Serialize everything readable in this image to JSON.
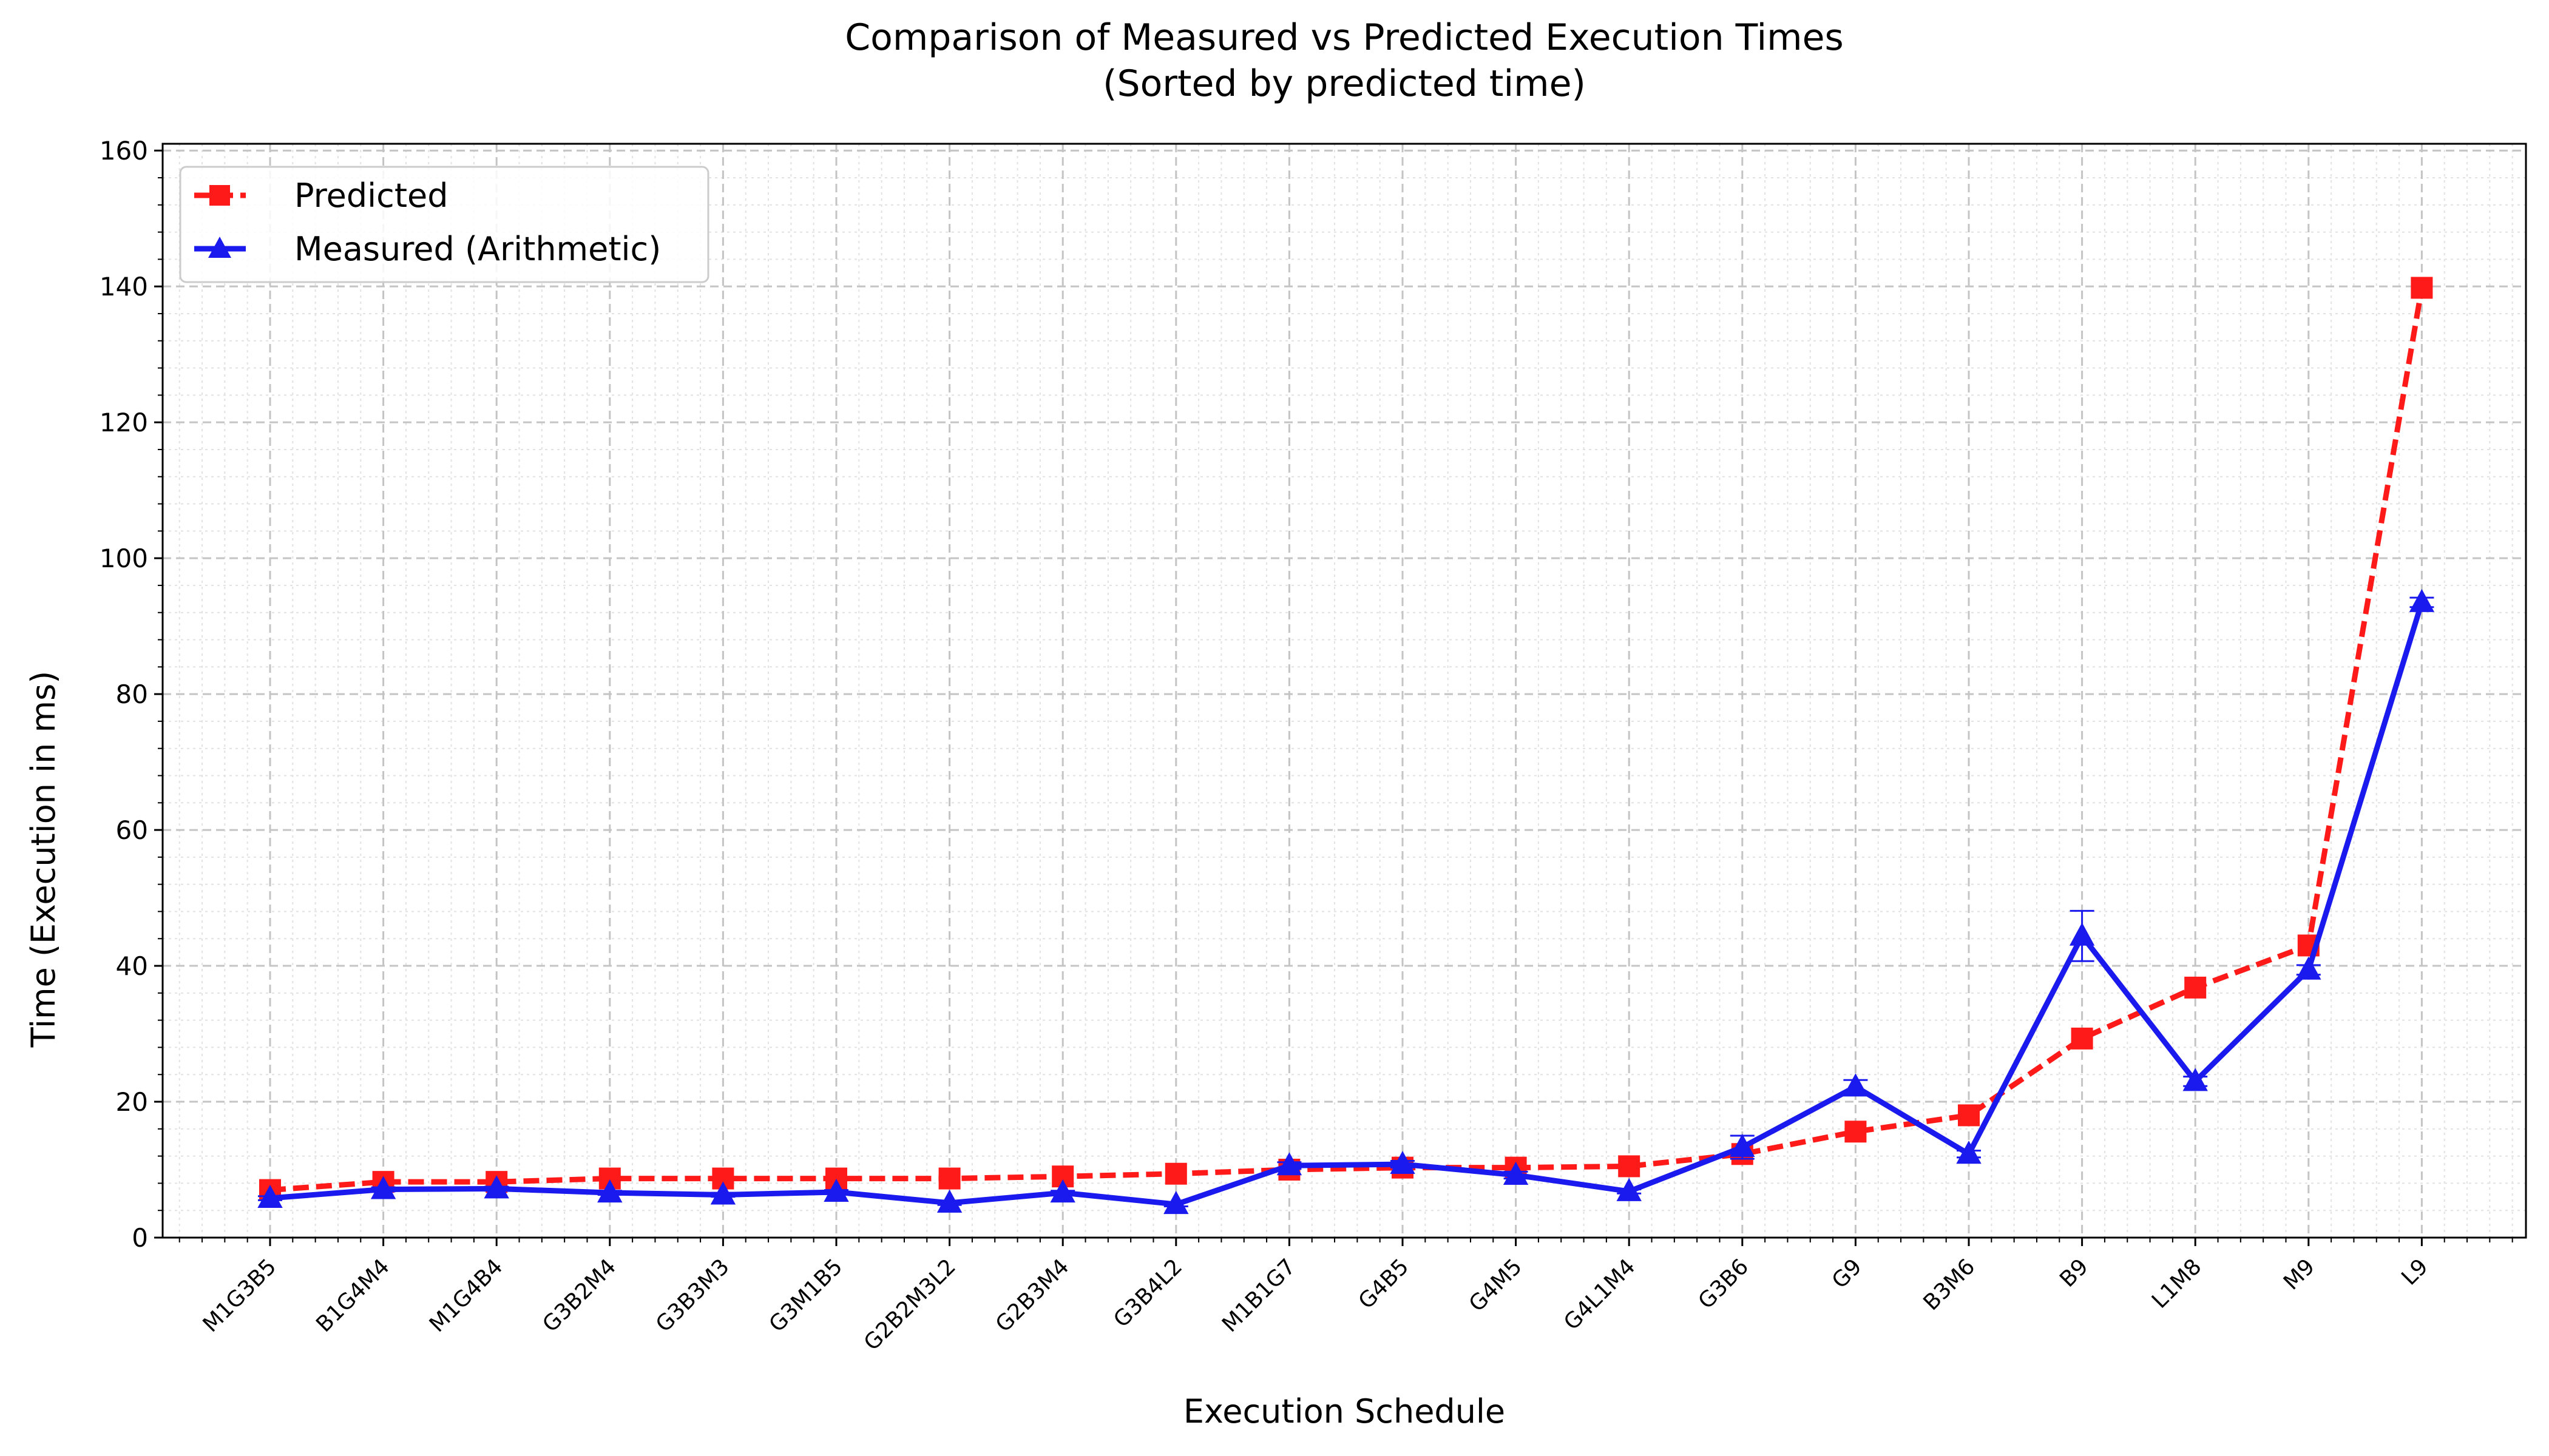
{
  "chart_data": {
    "type": "line",
    "title": "Comparison of Measured vs Predicted Execution Times",
    "subtitle": "(Sorted by predicted time)",
    "xlabel": "Execution Schedule",
    "ylabel": "Time (Execution in ms)",
    "ylim": [
      0,
      161
    ],
    "yticks": [
      0,
      20,
      40,
      60,
      80,
      100,
      120,
      140,
      160
    ],
    "grid": true,
    "legend_position": "top-left",
    "categories": [
      "M1G3B5",
      "B1G4M4",
      "M1G4B4",
      "G3B2M4",
      "G3B3M3",
      "G3M1B5",
      "G2B2M3L2",
      "G2B3M4",
      "G3B4L2",
      "M1B1G7",
      "G4B5",
      "G4M5",
      "G4L1M4",
      "G3B6",
      "G9",
      "B3M6",
      "B9",
      "L1M8",
      "M9",
      "L9"
    ],
    "series": [
      {
        "name": "Predicted",
        "color": "#ff1a1a",
        "line_style": "dashed",
        "marker": "square",
        "values": [
          7.0,
          8.2,
          8.2,
          8.7,
          8.7,
          8.7,
          8.7,
          9.0,
          9.4,
          10.0,
          10.3,
          10.3,
          10.5,
          12.3,
          15.6,
          18.0,
          29.3,
          36.8,
          43.0,
          139.8
        ]
      },
      {
        "name": "Measured (Arithmetic)",
        "color": "#1a1aee",
        "line_style": "solid",
        "marker": "triangle",
        "values": [
          5.8,
          7.1,
          7.2,
          6.6,
          6.3,
          6.7,
          5.1,
          6.6,
          4.9,
          10.6,
          10.8,
          9.2,
          6.8,
          13.3,
          22.2,
          12.3,
          44.4,
          23.0,
          39.4,
          93.5
        ],
        "errors": [
          0.3,
          0.3,
          0.3,
          0.3,
          0.3,
          0.3,
          0.3,
          0.3,
          0.3,
          0.5,
          0.5,
          0.5,
          0.3,
          1.7,
          1.0,
          0.5,
          3.7,
          0.7,
          0.7,
          0.7
        ]
      }
    ]
  }
}
